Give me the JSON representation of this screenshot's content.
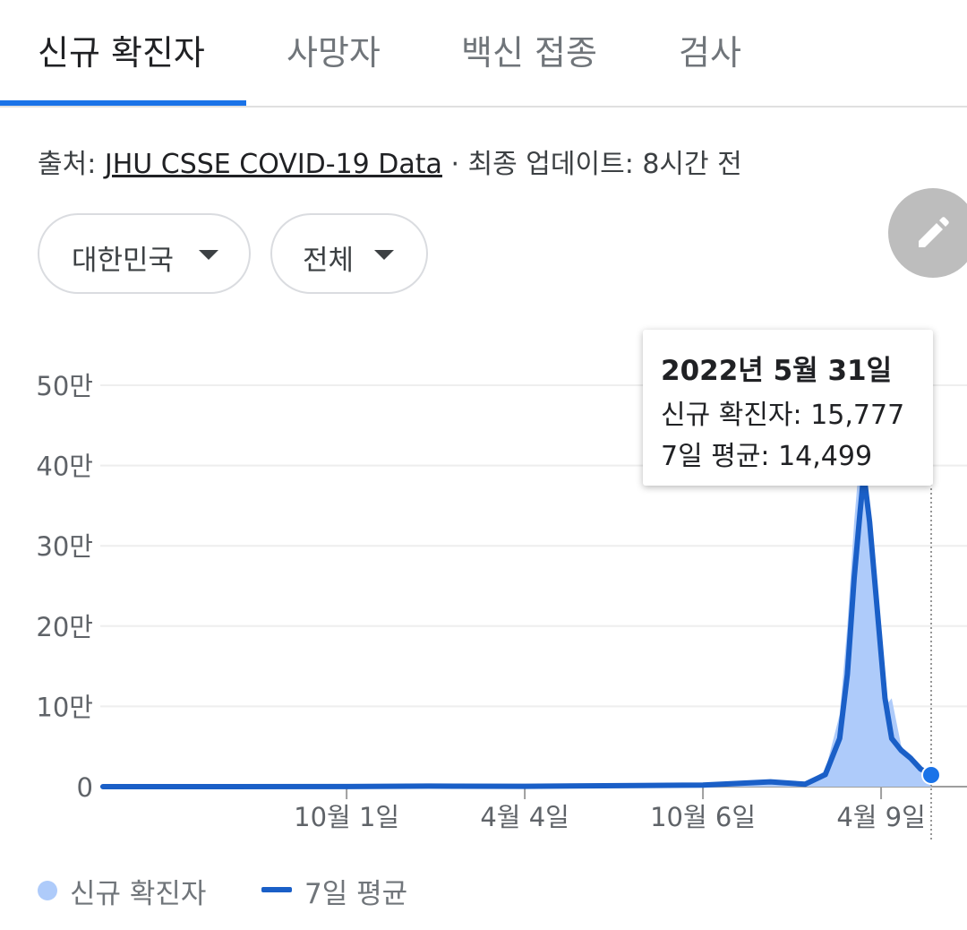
{
  "tabs": [
    {
      "label": "신규 확진자",
      "active": true
    },
    {
      "label": "사망자",
      "active": false
    },
    {
      "label": "백신 접종",
      "active": false
    },
    {
      "label": "검사",
      "active": false
    }
  ],
  "source": {
    "prefix": "출처: ",
    "link_text": "JHU CSSE COVID-19 Data",
    "separator": " · ",
    "updated": "최종 업데이트: 8시간 전"
  },
  "filters": {
    "region": "대한민국",
    "period": "전체"
  },
  "edit_icon": "pencil-icon",
  "tooltip": {
    "date": "2022년 5월 31일",
    "cases_label": "신규 확진자:",
    "cases_value": "15,777",
    "avg_label": "7일 평균:",
    "avg_value": "14,499"
  },
  "legend": {
    "bars_label": "신규 확진자",
    "line_label": "7일 평균"
  },
  "colors": {
    "accent": "#1a73e8",
    "line": "#1a5fc7",
    "bars": "#aecbfa"
  },
  "chart_data": {
    "type": "area",
    "x_tick_labels": [
      "10월 1일",
      "4월 4일",
      "10월 6일",
      "4월 9일"
    ],
    "y_tick_labels": [
      "0",
      "10만",
      "20만",
      "30만",
      "40만",
      "50만"
    ],
    "ylim": [
      0,
      500000
    ],
    "grid": true,
    "series": [
      {
        "name": "7일 평균",
        "x": [
          "2020-01-22",
          "2020-10-01",
          "2020-12-25",
          "2021-04-04",
          "2021-08-01",
          "2021-10-06",
          "2021-12-15",
          "2022-01-20",
          "2022-02-10",
          "2022-02-25",
          "2022-03-05",
          "2022-03-12",
          "2022-03-18",
          "2022-03-22",
          "2022-03-28",
          "2022-04-05",
          "2022-04-13",
          "2022-04-20",
          "2022-04-30",
          "2022-05-10",
          "2022-05-20",
          "2022-05-31"
        ],
        "values": [
          0,
          100,
          700,
          500,
          1500,
          2000,
          6000,
          3000,
          15000,
          60000,
          140000,
          260000,
          340000,
          390000,
          330000,
          220000,
          110000,
          60000,
          45000,
          35000,
          22000,
          14499
        ]
      },
      {
        "name": "신규 확진자",
        "x": [
          "2020-01-22",
          "2020-10-01",
          "2020-12-25",
          "2021-04-04",
          "2021-08-01",
          "2021-10-06",
          "2021-12-15",
          "2022-01-20",
          "2022-02-10",
          "2022-02-25",
          "2022-03-05",
          "2022-03-12",
          "2022-03-17",
          "2022-03-22",
          "2022-03-28",
          "2022-04-05",
          "2022-04-13",
          "2022-04-20",
          "2022-04-30",
          "2022-05-10",
          "2022-05-20",
          "2022-05-31"
        ],
        "values": [
          0,
          100,
          1000,
          500,
          1800,
          2500,
          7000,
          4000,
          20000,
          90000,
          200000,
          330000,
          400000,
          380000,
          300000,
          200000,
          100000,
          110000,
          50000,
          40000,
          25000,
          15777
        ]
      }
    ]
  }
}
